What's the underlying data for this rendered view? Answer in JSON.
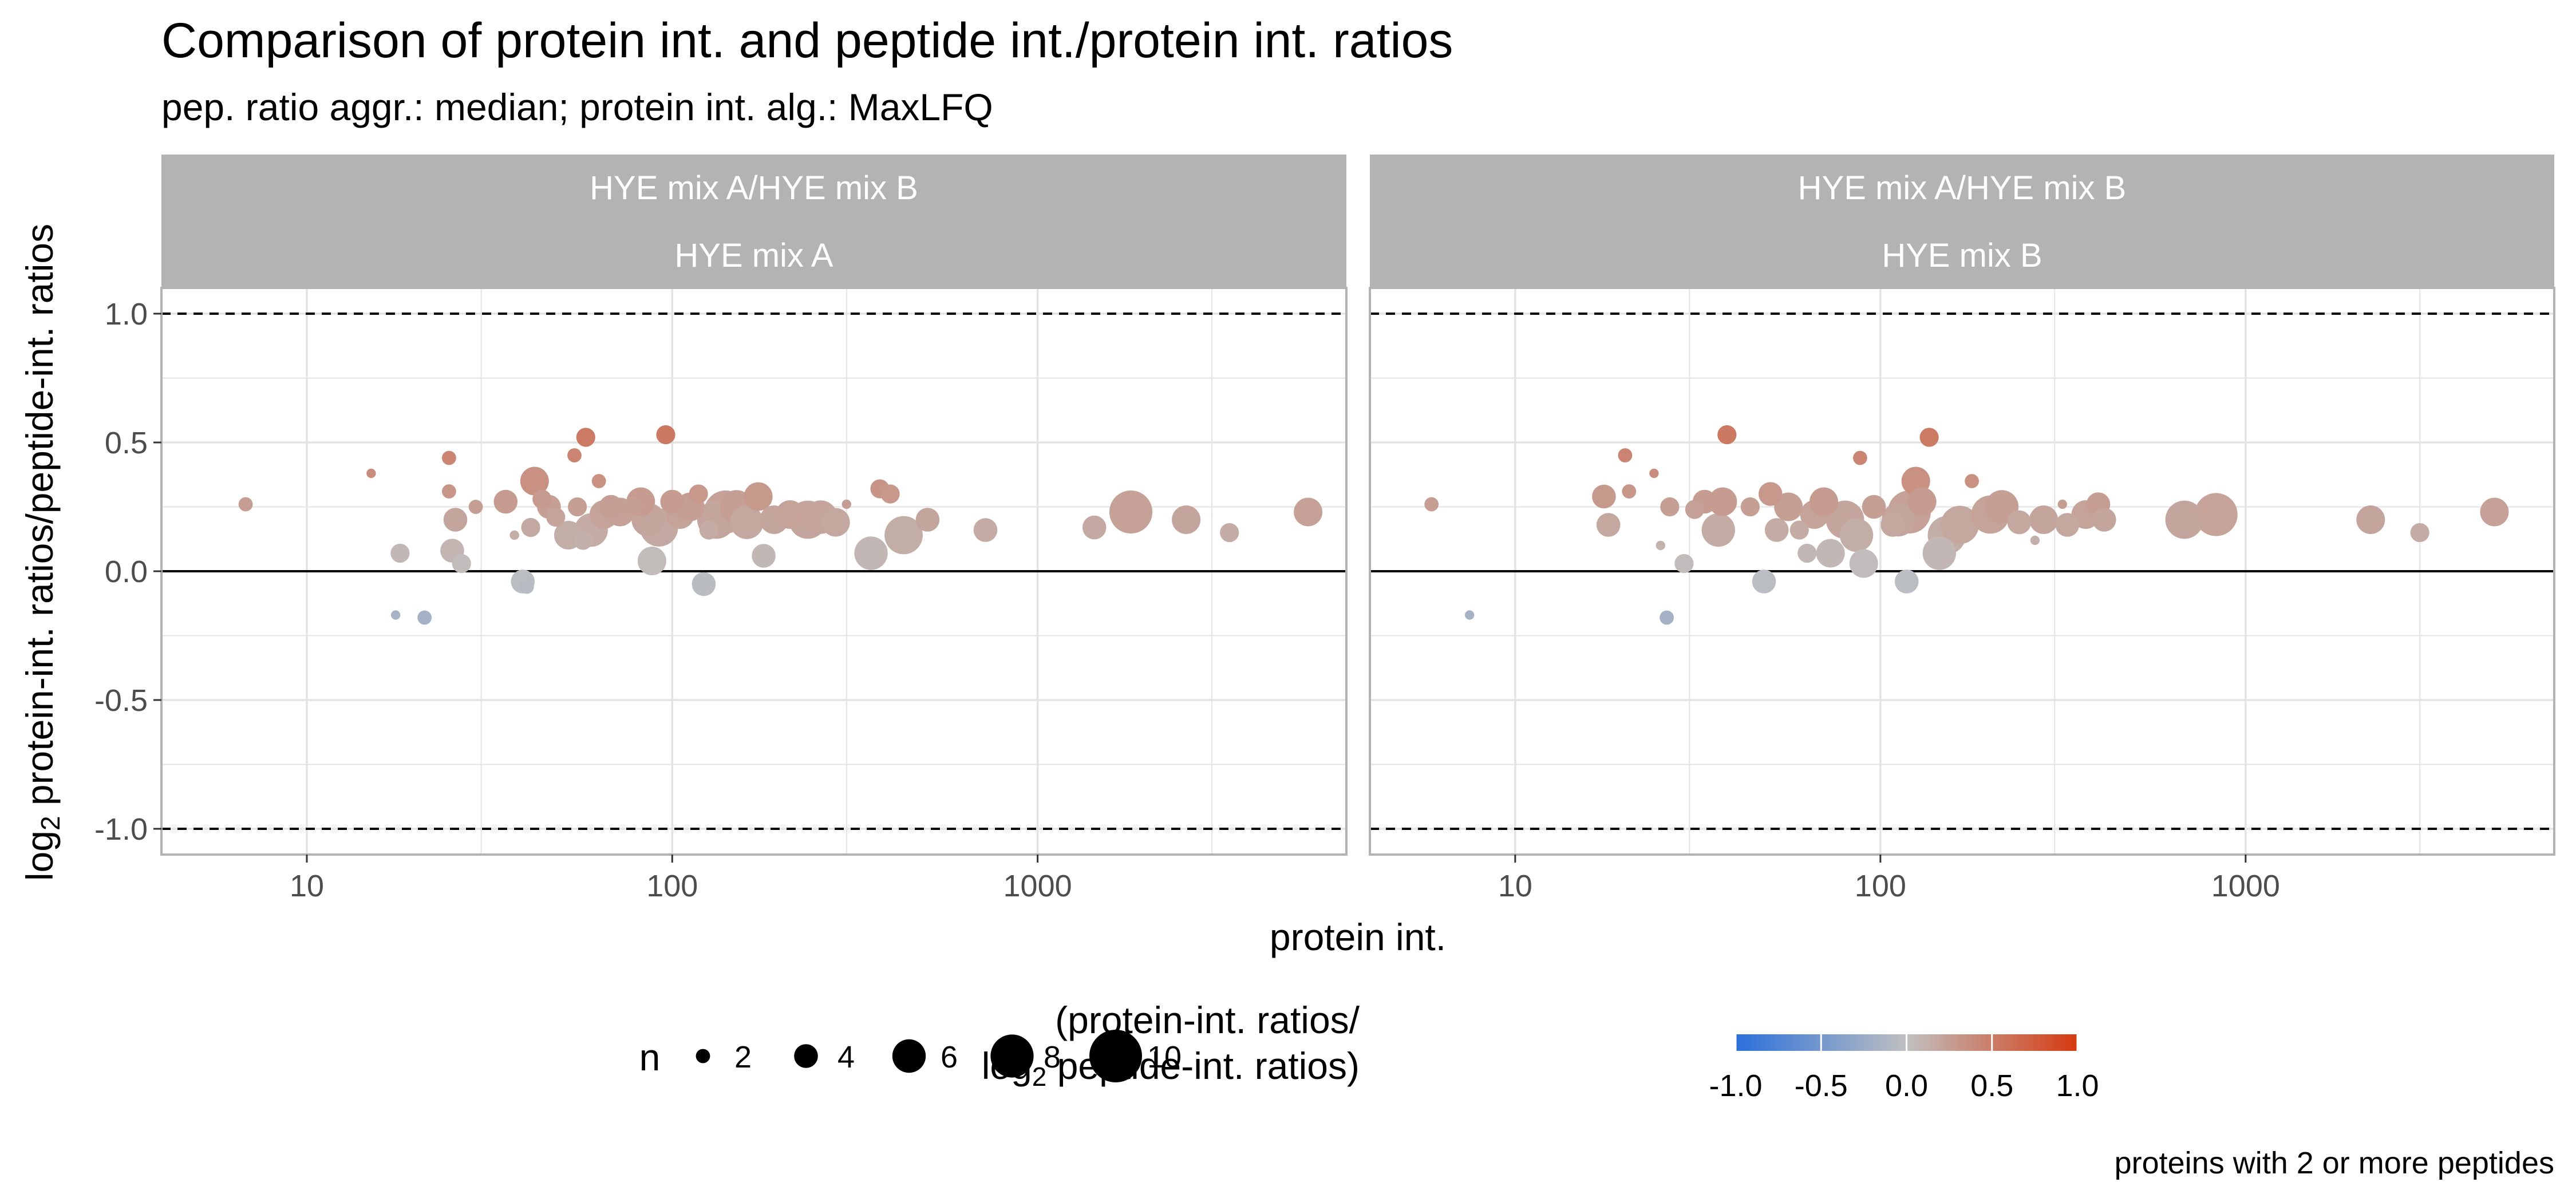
{
  "chart_data": {
    "type": "scatter",
    "title": "Comparison of protein int. and peptide int./protein int. ratios",
    "subtitle": "pep. ratio aggr.: median; protein int. alg.: MaxLFQ",
    "xlabel": "protein int.",
    "ylabel_prefix": "log",
    "ylabel_sub": "2",
    "ylabel_rest": " protein-int. ratios/peptide-int. ratios",
    "x_scale": "log10",
    "xlim": [
      4,
      7000
    ],
    "ylim": [
      -1.1,
      1.1
    ],
    "x_ticks": [
      10,
      100,
      1000
    ],
    "x_tick_labels": [
      "10",
      "100",
      "1000"
    ],
    "y_ticks": [
      -1.0,
      -0.5,
      0.0,
      0.5,
      1.0
    ],
    "y_tick_labels": [
      "-1.0",
      "-0.5",
      "0.0",
      "0.5",
      "1.0"
    ],
    "grid": true,
    "reference_lines": {
      "dashed": [
        -1.0,
        1.0
      ],
      "solid": [
        0.0
      ]
    },
    "legend_placement": "bottom",
    "caption": "proteins with 2 or more peptides",
    "size_legend": {
      "title": "n",
      "values": [
        2,
        4,
        6,
        8,
        10
      ],
      "labels": [
        "2",
        "4",
        "6",
        "8",
        "10"
      ]
    },
    "color_legend": {
      "title_line1": "(protein-int. ratios/",
      "title_prefix": "log",
      "title_sub": "2",
      "title_line2_rest": " peptide-int. ratios)",
      "range": [
        -1.0,
        1.0
      ],
      "ticks": [
        -1.0,
        -0.5,
        0.0,
        0.5,
        1.0
      ],
      "labels": [
        "-1.0",
        "-0.5",
        "0.0",
        "0.5",
        "1.0"
      ],
      "low_color": "#2a6fdb",
      "mid_color": "#c0c0c0",
      "high_color": "#d63a10"
    },
    "colors": {
      "strip_background": "#b3b3b3",
      "panel_border": "#b3b3b3",
      "grid": "#e3e3e3"
    },
    "panels": [
      {
        "strip_top": "HYE mix A/HYE mix B",
        "strip_bottom": "HYE mix A",
        "points": [
          {
            "x": 6.8,
            "y": 0.26,
            "n": 2
          },
          {
            "x": 15,
            "y": 0.38,
            "n": 1
          },
          {
            "x": 17.5,
            "y": -0.17,
            "n": 1
          },
          {
            "x": 18,
            "y": 0.07,
            "n": 3
          },
          {
            "x": 21,
            "y": -0.18,
            "n": 2
          },
          {
            "x": 24.5,
            "y": 0.44,
            "n": 2
          },
          {
            "x": 24.5,
            "y": 0.31,
            "n": 2
          },
          {
            "x": 25,
            "y": 0.08,
            "n": 4
          },
          {
            "x": 25.5,
            "y": 0.2,
            "n": 4
          },
          {
            "x": 26.5,
            "y": 0.03,
            "n": 3
          },
          {
            "x": 29,
            "y": 0.25,
            "n": 2
          },
          {
            "x": 35,
            "y": 0.27,
            "n": 4
          },
          {
            "x": 37,
            "y": 0.14,
            "n": 1
          },
          {
            "x": 39,
            "y": -0.04,
            "n": 4
          },
          {
            "x": 40,
            "y": -0.06,
            "n": 2
          },
          {
            "x": 41,
            "y": 0.17,
            "n": 3
          },
          {
            "x": 42,
            "y": 0.35,
            "n": 5
          },
          {
            "x": 44,
            "y": 0.28,
            "n": 3
          },
          {
            "x": 46,
            "y": 0.25,
            "n": 4
          },
          {
            "x": 48,
            "y": 0.21,
            "n": 3
          },
          {
            "x": 52,
            "y": 0.14,
            "n": 5
          },
          {
            "x": 54,
            "y": 0.45,
            "n": 2
          },
          {
            "x": 55,
            "y": 0.25,
            "n": 3
          },
          {
            "x": 57,
            "y": 0.12,
            "n": 3
          },
          {
            "x": 58,
            "y": 0.52,
            "n": 3
          },
          {
            "x": 60,
            "y": 0.16,
            "n": 6
          },
          {
            "x": 63,
            "y": 0.35,
            "n": 2
          },
          {
            "x": 65,
            "y": 0.22,
            "n": 5
          },
          {
            "x": 68,
            "y": 0.25,
            "n": 4
          },
          {
            "x": 72,
            "y": 0.23,
            "n": 5
          },
          {
            "x": 78,
            "y": 0.25,
            "n": 3
          },
          {
            "x": 82,
            "y": 0.27,
            "n": 5
          },
          {
            "x": 86,
            "y": 0.2,
            "n": 6
          },
          {
            "x": 88,
            "y": 0.04,
            "n": 5
          },
          {
            "x": 92,
            "y": 0.17,
            "n": 7
          },
          {
            "x": 96,
            "y": 0.53,
            "n": 3
          },
          {
            "x": 100,
            "y": 0.27,
            "n": 4
          },
          {
            "x": 105,
            "y": 0.22,
            "n": 5
          },
          {
            "x": 112,
            "y": 0.25,
            "n": 5
          },
          {
            "x": 118,
            "y": 0.3,
            "n": 3
          },
          {
            "x": 122,
            "y": -0.05,
            "n": 4
          },
          {
            "x": 126,
            "y": 0.16,
            "n": 3
          },
          {
            "x": 132,
            "y": 0.2,
            "n": 7
          },
          {
            "x": 140,
            "y": 0.23,
            "n": 8
          },
          {
            "x": 150,
            "y": 0.25,
            "n": 6
          },
          {
            "x": 160,
            "y": 0.19,
            "n": 6
          },
          {
            "x": 172,
            "y": 0.29,
            "n": 5
          },
          {
            "x": 178,
            "y": 0.06,
            "n": 4
          },
          {
            "x": 190,
            "y": 0.2,
            "n": 5
          },
          {
            "x": 210,
            "y": 0.22,
            "n": 5
          },
          {
            "x": 235,
            "y": 0.2,
            "n": 7
          },
          {
            "x": 255,
            "y": 0.21,
            "n": 6
          },
          {
            "x": 280,
            "y": 0.19,
            "n": 5
          },
          {
            "x": 300,
            "y": 0.26,
            "n": 1
          },
          {
            "x": 350,
            "y": 0.07,
            "n": 6
          },
          {
            "x": 370,
            "y": 0.32,
            "n": 3
          },
          {
            "x": 395,
            "y": 0.3,
            "n": 3
          },
          {
            "x": 430,
            "y": 0.14,
            "n": 7
          },
          {
            "x": 500,
            "y": 0.2,
            "n": 4
          },
          {
            "x": 720,
            "y": 0.16,
            "n": 4
          },
          {
            "x": 1430,
            "y": 0.17,
            "n": 4
          },
          {
            "x": 1800,
            "y": 0.23,
            "n": 8
          },
          {
            "x": 2550,
            "y": 0.2,
            "n": 5
          },
          {
            "x": 3350,
            "y": 0.15,
            "n": 3
          },
          {
            "x": 5500,
            "y": 0.23,
            "n": 5
          }
        ]
      },
      {
        "strip_top": "HYE mix A/HYE mix B",
        "strip_bottom": "HYE mix B",
        "points": [
          {
            "x": 5.9,
            "y": 0.26,
            "n": 2
          },
          {
            "x": 7.5,
            "y": -0.17,
            "n": 1
          },
          {
            "x": 17.5,
            "y": 0.29,
            "n": 4
          },
          {
            "x": 18,
            "y": 0.18,
            "n": 4
          },
          {
            "x": 20,
            "y": 0.45,
            "n": 2
          },
          {
            "x": 20.5,
            "y": 0.31,
            "n": 2
          },
          {
            "x": 24,
            "y": 0.38,
            "n": 1
          },
          {
            "x": 25,
            "y": 0.1,
            "n": 1
          },
          {
            "x": 26,
            "y": -0.18,
            "n": 2
          },
          {
            "x": 26.5,
            "y": 0.25,
            "n": 3
          },
          {
            "x": 29,
            "y": 0.03,
            "n": 3
          },
          {
            "x": 31,
            "y": 0.24,
            "n": 3
          },
          {
            "x": 33,
            "y": 0.27,
            "n": 4
          },
          {
            "x": 36,
            "y": 0.16,
            "n": 6
          },
          {
            "x": 37,
            "y": 0.27,
            "n": 5
          },
          {
            "x": 38,
            "y": 0.53,
            "n": 3
          },
          {
            "x": 44,
            "y": 0.25,
            "n": 3
          },
          {
            "x": 48,
            "y": -0.04,
            "n": 4
          },
          {
            "x": 50,
            "y": 0.3,
            "n": 4
          },
          {
            "x": 52,
            "y": 0.16,
            "n": 4
          },
          {
            "x": 56,
            "y": 0.25,
            "n": 5
          },
          {
            "x": 60,
            "y": 0.16,
            "n": 3
          },
          {
            "x": 63,
            "y": 0.07,
            "n": 3
          },
          {
            "x": 66,
            "y": 0.22,
            "n": 5
          },
          {
            "x": 70,
            "y": 0.27,
            "n": 5
          },
          {
            "x": 73,
            "y": 0.07,
            "n": 5
          },
          {
            "x": 80,
            "y": 0.2,
            "n": 7
          },
          {
            "x": 86,
            "y": 0.14,
            "n": 6
          },
          {
            "x": 88,
            "y": 0.44,
            "n": 2
          },
          {
            "x": 90,
            "y": 0.03,
            "n": 5
          },
          {
            "x": 96,
            "y": 0.25,
            "n": 4
          },
          {
            "x": 108,
            "y": 0.18,
            "n": 4
          },
          {
            "x": 112,
            "y": 0.2,
            "n": 6
          },
          {
            "x": 118,
            "y": -0.04,
            "n": 4
          },
          {
            "x": 120,
            "y": 0.23,
            "n": 8
          },
          {
            "x": 125,
            "y": 0.35,
            "n": 5
          },
          {
            "x": 130,
            "y": 0.27,
            "n": 5
          },
          {
            "x": 136,
            "y": 0.52,
            "n": 3
          },
          {
            "x": 145,
            "y": 0.07,
            "n": 6
          },
          {
            "x": 152,
            "y": 0.14,
            "n": 7
          },
          {
            "x": 165,
            "y": 0.18,
            "n": 7
          },
          {
            "x": 178,
            "y": 0.35,
            "n": 2
          },
          {
            "x": 200,
            "y": 0.22,
            "n": 7
          },
          {
            "x": 215,
            "y": 0.25,
            "n": 6
          },
          {
            "x": 240,
            "y": 0.19,
            "n": 4
          },
          {
            "x": 265,
            "y": 0.12,
            "n": 1
          },
          {
            "x": 280,
            "y": 0.2,
            "n": 5
          },
          {
            "x": 315,
            "y": 0.26,
            "n": 1
          },
          {
            "x": 325,
            "y": 0.18,
            "n": 4
          },
          {
            "x": 365,
            "y": 0.22,
            "n": 5
          },
          {
            "x": 395,
            "y": 0.26,
            "n": 4
          },
          {
            "x": 410,
            "y": 0.2,
            "n": 4
          },
          {
            "x": 680,
            "y": 0.2,
            "n": 7
          },
          {
            "x": 830,
            "y": 0.22,
            "n": 8
          },
          {
            "x": 2200,
            "y": 0.2,
            "n": 5
          },
          {
            "x": 3000,
            "y": 0.15,
            "n": 3
          },
          {
            "x": 4800,
            "y": 0.23,
            "n": 5
          }
        ]
      }
    ]
  }
}
